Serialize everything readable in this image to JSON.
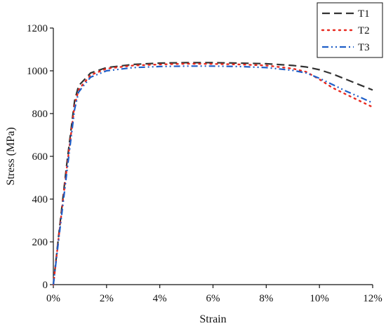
{
  "chart_data": {
    "type": "line",
    "title": "",
    "xlabel": "Strain",
    "ylabel": "Stress (MPa)",
    "xlim": [
      0,
      12
    ],
    "ylim": [
      0,
      1200
    ],
    "x_ticks": [
      0,
      2,
      4,
      6,
      8,
      10,
      12
    ],
    "x_tick_labels": [
      "0%",
      "2%",
      "4%",
      "6%",
      "8%",
      "10%",
      "12%"
    ],
    "y_ticks": [
      0,
      200,
      400,
      600,
      800,
      1000,
      1200
    ],
    "y_tick_labels": [
      "0",
      "200",
      "400",
      "600",
      "800",
      "1000",
      "1200"
    ],
    "grid": false,
    "legend_position": "top-right",
    "series": [
      {
        "name": "T1",
        "color": "#333333",
        "style": "dash",
        "x": [
          0,
          0.2,
          0.5,
          0.8,
          0.95,
          1.1,
          1.4,
          2.0,
          3.0,
          4.0,
          5.0,
          6.0,
          7.0,
          8.0,
          9.0,
          9.5,
          10.0,
          10.5,
          11.0,
          11.5,
          12.0
        ],
        "y": [
          0,
          230,
          560,
          860,
          930,
          950,
          990,
          1015,
          1030,
          1036,
          1038,
          1038,
          1036,
          1033,
          1025,
          1018,
          1005,
          985,
          960,
          935,
          910
        ]
      },
      {
        "name": "T2",
        "color": "#e8281e",
        "style": "dot",
        "x": [
          0,
          0.2,
          0.5,
          0.8,
          0.95,
          1.1,
          1.4,
          2.0,
          3.0,
          4.0,
          5.0,
          6.0,
          7.0,
          8.0,
          9.0,
          9.5,
          10.0,
          10.5,
          11.0,
          11.5,
          12.0
        ],
        "y": [
          0,
          220,
          540,
          840,
          910,
          935,
          980,
          1010,
          1025,
          1030,
          1033,
          1032,
          1030,
          1025,
          1010,
          995,
          960,
          920,
          890,
          860,
          830
        ]
      },
      {
        "name": "T3",
        "color": "#1f5fc8",
        "style": "dash-dot-dot",
        "x": [
          0,
          0.2,
          0.5,
          0.8,
          0.95,
          1.1,
          1.4,
          2.0,
          3.0,
          4.0,
          5.0,
          6.0,
          7.0,
          8.0,
          9.0,
          9.5,
          10.0,
          10.5,
          11.0,
          11.5,
          12.0
        ],
        "y": [
          0,
          210,
          520,
          820,
          900,
          925,
          970,
          1000,
          1015,
          1020,
          1022,
          1022,
          1020,
          1015,
          1002,
          990,
          965,
          935,
          905,
          878,
          850
        ]
      }
    ]
  }
}
